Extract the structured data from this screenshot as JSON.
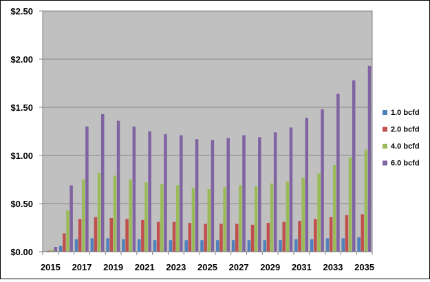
{
  "chart_data": {
    "type": "bar",
    "title": "",
    "xlabel": "",
    "ylabel": "",
    "ylim": [
      0,
      2.5
    ],
    "y_ticks": [
      "$0.00",
      "$0.50",
      "$1.00",
      "$1.50",
      "$2.00",
      "$2.50"
    ],
    "y_tick_values": [
      0,
      0.5,
      1.0,
      1.5,
      2.0,
      2.5
    ],
    "x_tick_labels": [
      "2015",
      "2017",
      "2019",
      "2021",
      "2023",
      "2025",
      "2027",
      "2029",
      "2031",
      "2033",
      "2035"
    ],
    "categories": [
      "2015",
      "2016",
      "2017",
      "2018",
      "2019",
      "2020",
      "2021",
      "2022",
      "2023",
      "2024",
      "2025",
      "2026",
      "2027",
      "2028",
      "2029",
      "2030",
      "2031",
      "2032",
      "2033",
      "2034",
      "2035"
    ],
    "grid": "horizontal",
    "plot_background": "#c0c0c0",
    "legend_position": "right",
    "series": [
      {
        "name": "1.0 bcfd",
        "color": "#4f81bd",
        "values": [
          0.005,
          0.06,
          0.13,
          0.14,
          0.14,
          0.13,
          0.13,
          0.12,
          0.12,
          0.12,
          0.12,
          0.12,
          0.12,
          0.12,
          0.12,
          0.12,
          0.13,
          0.13,
          0.14,
          0.14,
          0.15
        ]
      },
      {
        "name": "2.0 bcfd",
        "color": "#c0504d",
        "values": [
          0.01,
          0.19,
          0.34,
          0.36,
          0.35,
          0.34,
          0.33,
          0.31,
          0.31,
          0.3,
          0.29,
          0.29,
          0.29,
          0.28,
          0.3,
          0.31,
          0.32,
          0.34,
          0.36,
          0.38,
          0.39
        ]
      },
      {
        "name": "4.0 bcfd",
        "color": "#9bbb59",
        "values": [
          0.02,
          0.43,
          0.75,
          0.82,
          0.79,
          0.75,
          0.72,
          0.7,
          0.69,
          0.66,
          0.65,
          0.67,
          0.69,
          0.68,
          0.71,
          0.73,
          0.77,
          0.81,
          0.9,
          0.98,
          1.06
        ]
      },
      {
        "name": "6.0 bcfd",
        "color": "#8064a2",
        "values": [
          0.05,
          0.69,
          1.3,
          1.43,
          1.36,
          1.3,
          1.25,
          1.22,
          1.21,
          1.17,
          1.16,
          1.18,
          1.21,
          1.19,
          1.24,
          1.29,
          1.39,
          1.48,
          1.64,
          1.78,
          1.93
        ]
      }
    ]
  }
}
